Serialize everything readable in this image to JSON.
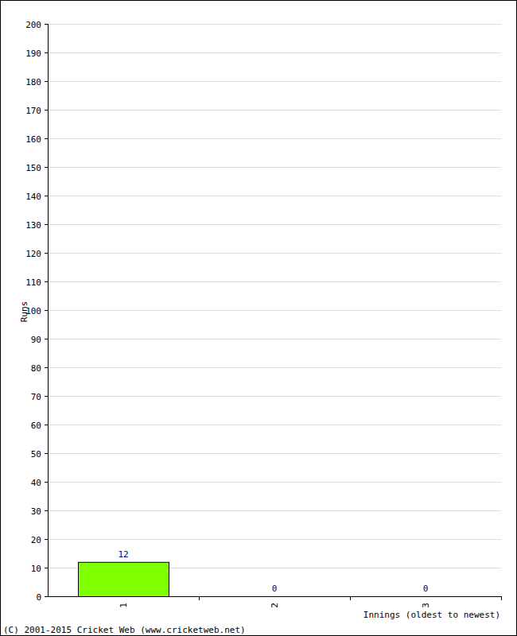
{
  "chart_data": {
    "type": "bar",
    "categories": [
      "1",
      "2",
      "3"
    ],
    "values": [
      12,
      0,
      0
    ],
    "color": "#80ff00",
    "ylim": [
      0,
      200
    ],
    "yticks": [
      0,
      10,
      20,
      30,
      40,
      50,
      60,
      70,
      80,
      90,
      100,
      110,
      120,
      130,
      140,
      150,
      160,
      170,
      180,
      190,
      200
    ],
    "grid": true,
    "data_labels": true,
    "y_label": "Runs",
    "x_label": "Innings (oldest to newest)",
    "annotations": [
      "(C) 2001-2015 Cricket Web (www.cricketweb.net)"
    ]
  }
}
